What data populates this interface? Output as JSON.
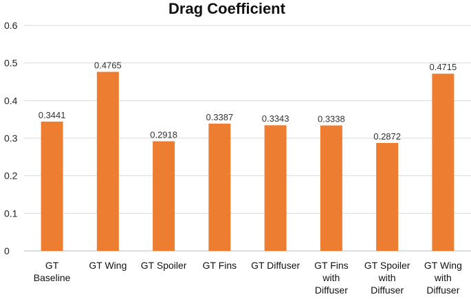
{
  "chart_data": {
    "type": "bar",
    "title": "Drag Coefficient",
    "xlabel": "",
    "ylabel": "",
    "ylim": [
      0,
      0.6
    ],
    "yticks": [
      0,
      0.1,
      0.2,
      0.3,
      0.4,
      0.5,
      0.6
    ],
    "grid": true,
    "categories": [
      [
        "GT",
        "Baseline"
      ],
      [
        "GT Wing"
      ],
      [
        "GT Spoiler"
      ],
      [
        "GT Fins"
      ],
      [
        "GT Diffuser"
      ],
      [
        "GT Fins",
        "with",
        "Diffuser"
      ],
      [
        "GT Spoiler",
        "with",
        "Diffuser"
      ],
      [
        "GT Wing",
        "with",
        "Diffuser"
      ]
    ],
    "values": [
      0.3441,
      0.4765,
      0.2918,
      0.3387,
      0.3343,
      0.3338,
      0.2872,
      0.4715
    ],
    "data_labels": [
      "0.3441",
      "0.4765",
      "0.2918",
      "0.3387",
      "0.3343",
      "0.3338",
      "0.2872",
      "0.4715"
    ],
    "bar_color": "#ED7D31"
  }
}
